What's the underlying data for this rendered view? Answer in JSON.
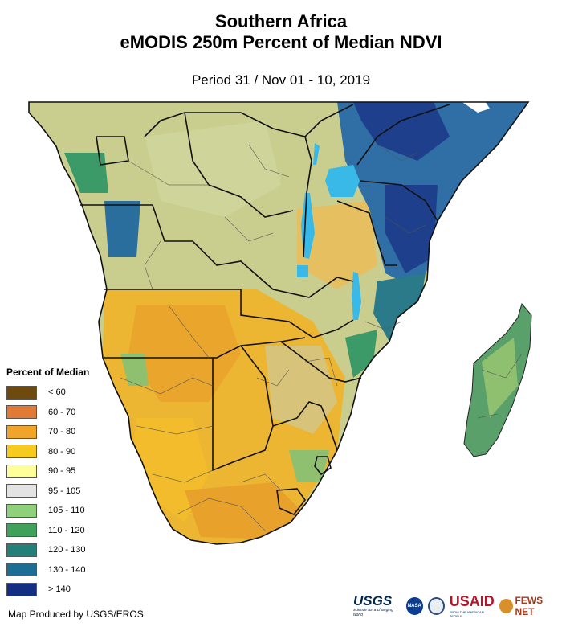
{
  "title_line1": "Southern Africa",
  "title_line2": "eMODIS 250m Percent of Median NDVI",
  "subtitle": "Period 31 / Nov 01 - 10, 2019",
  "legend": {
    "title": "Percent of Median",
    "items": [
      {
        "label": "< 60",
        "color": "#6e4a0f"
      },
      {
        "label": "60 - 70",
        "color": "#e07a35"
      },
      {
        "label": "70 - 80",
        "color": "#f0a52a"
      },
      {
        "label": "80 - 90",
        "color": "#f6cb1d"
      },
      {
        "label": "90 - 95",
        "color": "#ffff99"
      },
      {
        "label": "95 - 105",
        "color": "#e3e3e3"
      },
      {
        "label": "105 - 110",
        "color": "#8fd07a"
      },
      {
        "label": "110 - 120",
        "color": "#3fa15a"
      },
      {
        "label": "120 - 130",
        "color": "#228079"
      },
      {
        "label": "130 - 140",
        "color": "#1d6e95"
      },
      {
        "label": "> 140",
        "color": "#142f82"
      }
    ]
  },
  "credit": "Map Produced by USGS/EROS",
  "logos": {
    "usgs": "USGS",
    "usgs_tagline": "science for a changing world",
    "nasa": "NASA",
    "usaid": "USAID",
    "usaid_tagline": "FROM THE AMERICAN PEOPLE",
    "fews": "FEWS NET"
  },
  "colors": {
    "water": "#39b9e8",
    "border": "#111111",
    "admin": "#555555"
  }
}
